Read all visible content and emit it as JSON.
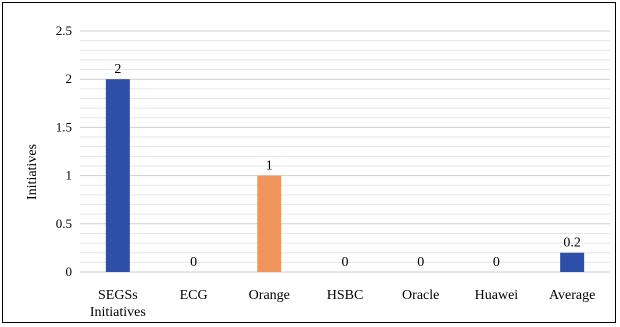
{
  "chart_data": {
    "type": "bar",
    "categories": [
      [
        "SEGSs",
        "Initiatives"
      ],
      [
        "ECG"
      ],
      [
        "Orange"
      ],
      [
        "HSBC"
      ],
      [
        "Oracle"
      ],
      [
        "Huawei"
      ],
      [
        "Average"
      ]
    ],
    "values": [
      2,
      0,
      1,
      0,
      0,
      0,
      0.2
    ],
    "data_labels": [
      "2",
      "0",
      "1",
      "0",
      "0",
      "0",
      "0.2"
    ],
    "bar_colors": [
      "#2e4fa8",
      "#2e4fa8",
      "#f0965c",
      "#2e4fa8",
      "#2e4fa8",
      "#2e4fa8",
      "#2e4fa8"
    ],
    "ylabel": "Initiatives",
    "ylim": [
      0,
      2.5
    ],
    "yticks": [
      0,
      0.5,
      1,
      1.5,
      2,
      2.5
    ],
    "ytick_labels": [
      "0",
      "0.5",
      "1",
      "1.5",
      "2",
      "2.5"
    ],
    "grid": true,
    "gridline_color": "#d9d9d9"
  }
}
